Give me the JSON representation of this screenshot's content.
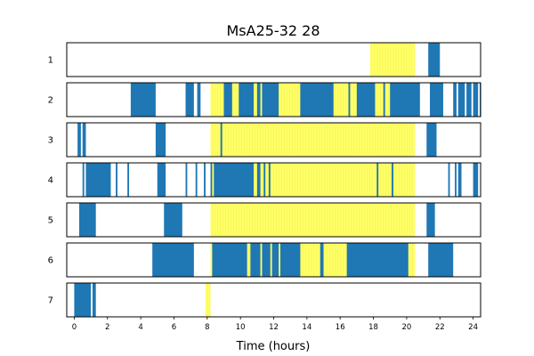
{
  "chart_data": {
    "type": "bar",
    "title": "MsA25-32 28",
    "xlabel": "Time (hours)",
    "xlim": [
      0,
      24
    ],
    "xticks": [
      0,
      2,
      4,
      6,
      8,
      10,
      12,
      14,
      16,
      18,
      20,
      22,
      24
    ],
    "colors": {
      "activity": "#1f77b4",
      "highlight": "#ffff66"
    },
    "rows": [
      {
        "label": "1",
        "highlights": [
          [
            17.8,
            20.5
          ]
        ],
        "activity": [
          [
            21.3,
            22.0
          ]
        ]
      },
      {
        "label": "2",
        "highlights": [
          [
            8.2,
            20.5
          ]
        ],
        "activity": [
          [
            3.4,
            4.9
          ],
          [
            6.7,
            7.2
          ],
          [
            7.4,
            7.6
          ],
          [
            9.0,
            9.5
          ],
          [
            9.9,
            10.8
          ],
          [
            11.0,
            11.2
          ],
          [
            11.3,
            12.3
          ],
          [
            13.6,
            15.6
          ],
          [
            16.5,
            16.6
          ],
          [
            17.0,
            18.1
          ],
          [
            18.6,
            18.7
          ],
          [
            19.0,
            20.8
          ],
          [
            21.4,
            22.2
          ],
          [
            22.8,
            23.0
          ],
          [
            23.1,
            23.5
          ],
          [
            23.6,
            23.9
          ],
          [
            24.0,
            24.3
          ],
          [
            24.4,
            24.5
          ]
        ]
      },
      {
        "label": "3",
        "highlights": [
          [
            8.2,
            20.5
          ]
        ],
        "activity": [
          [
            0.2,
            0.4
          ],
          [
            0.5,
            0.7
          ],
          [
            4.9,
            5.5
          ],
          [
            8.8,
            8.9
          ],
          [
            21.2,
            21.8
          ]
        ]
      },
      {
        "label": "4",
        "highlights": [
          [
            8.2,
            20.5
          ]
        ],
        "activity": [
          [
            0.5,
            0.6
          ],
          [
            0.7,
            2.2
          ],
          [
            2.5,
            2.6
          ],
          [
            3.2,
            3.3
          ],
          [
            5.0,
            5.5
          ],
          [
            6.7,
            6.8
          ],
          [
            7.3,
            7.4
          ],
          [
            7.8,
            7.9
          ],
          [
            8.2,
            8.3
          ],
          [
            8.4,
            10.8
          ],
          [
            11.0,
            11.2
          ],
          [
            11.4,
            11.5
          ],
          [
            11.7,
            11.8
          ],
          [
            18.2,
            18.3
          ],
          [
            19.1,
            19.2
          ],
          [
            22.5,
            22.6
          ],
          [
            22.9,
            23.0
          ],
          [
            23.1,
            23.3
          ],
          [
            24.0,
            24.3
          ]
        ]
      },
      {
        "label": "5",
        "highlights": [
          [
            8.2,
            20.5
          ]
        ],
        "activity": [
          [
            0.3,
            1.3
          ],
          [
            5.4,
            6.5
          ],
          [
            21.2,
            21.7
          ]
        ]
      },
      {
        "label": "6",
        "highlights": [
          [
            8.2,
            20.5
          ]
        ],
        "activity": [
          [
            4.7,
            7.2
          ],
          [
            8.3,
            10.4
          ],
          [
            10.6,
            11.2
          ],
          [
            11.3,
            11.8
          ],
          [
            11.9,
            12.3
          ],
          [
            12.4,
            13.6
          ],
          [
            14.8,
            15.0
          ],
          [
            16.4,
            20.1
          ],
          [
            21.3,
            22.8
          ]
        ]
      },
      {
        "label": "7",
        "highlights": [
          [
            7.9,
            8.2
          ]
        ],
        "activity": [
          [
            0.0,
            1.0
          ],
          [
            1.1,
            1.3
          ]
        ]
      }
    ]
  }
}
